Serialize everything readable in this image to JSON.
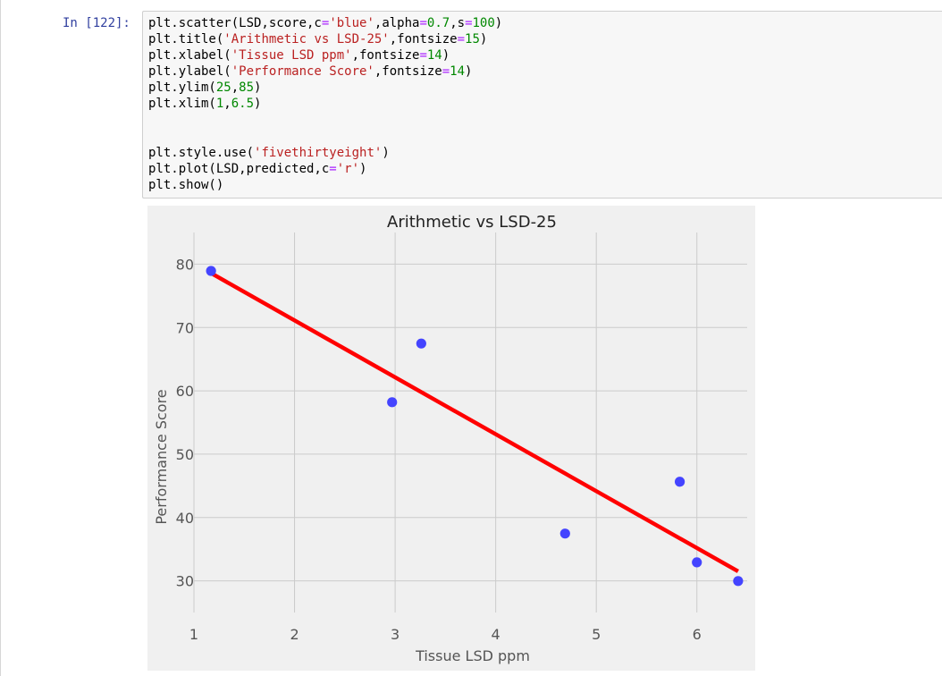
{
  "cell": {
    "prompt": "In [122]:",
    "code_lines": [
      [
        {
          "t": "plt.scatter(LSD,score,c"
        },
        {
          "t": "=",
          "k": "op"
        },
        {
          "t": "'blue'",
          "k": "str"
        },
        {
          "t": ",alpha"
        },
        {
          "t": "=",
          "k": "op"
        },
        {
          "t": "0.7",
          "k": "num"
        },
        {
          "t": ",s"
        },
        {
          "t": "=",
          "k": "op"
        },
        {
          "t": "100",
          "k": "num"
        },
        {
          "t": ")"
        }
      ],
      [
        {
          "t": "plt.title("
        },
        {
          "t": "'Arithmetic vs LSD-25'",
          "k": "str"
        },
        {
          "t": ",fontsize"
        },
        {
          "t": "=",
          "k": "op"
        },
        {
          "t": "15",
          "k": "num"
        },
        {
          "t": ")"
        }
      ],
      [
        {
          "t": "plt.xlabel("
        },
        {
          "t": "'Tissue LSD ppm'",
          "k": "str"
        },
        {
          "t": ",fontsize"
        },
        {
          "t": "=",
          "k": "op"
        },
        {
          "t": "14",
          "k": "num"
        },
        {
          "t": ")"
        }
      ],
      [
        {
          "t": "plt.ylabel("
        },
        {
          "t": "'Performance Score'",
          "k": "str"
        },
        {
          "t": ",fontsize"
        },
        {
          "t": "=",
          "k": "op"
        },
        {
          "t": "14",
          "k": "num"
        },
        {
          "t": ")"
        }
      ],
      [
        {
          "t": "plt.ylim("
        },
        {
          "t": "25",
          "k": "num"
        },
        {
          "t": ","
        },
        {
          "t": "85",
          "k": "num"
        },
        {
          "t": ")"
        }
      ],
      [
        {
          "t": "plt.xlim("
        },
        {
          "t": "1",
          "k": "num"
        },
        {
          "t": ","
        },
        {
          "t": "6.5",
          "k": "num"
        },
        {
          "t": ")"
        }
      ],
      [],
      [],
      [
        {
          "t": "plt.style.use("
        },
        {
          "t": "'fivethirtyeight'",
          "k": "str"
        },
        {
          "t": ")"
        }
      ],
      [
        {
          "t": "plt.plot(LSD,predicted,c"
        },
        {
          "t": "=",
          "k": "op"
        },
        {
          "t": "'r'",
          "k": "str"
        },
        {
          "t": ")"
        }
      ],
      [
        {
          "t": "plt.show()"
        }
      ]
    ]
  },
  "colors": {
    "plot_bg": "#f0f0f0",
    "grid": "#cbcbcb",
    "scatter": "#4444ff",
    "line": "#ff0000",
    "tick_text": "#555555",
    "label_text": "#555555",
    "title_text": "#222222"
  },
  "chart_data": {
    "type": "scatter",
    "title": "Arithmetic vs LSD-25",
    "xlabel": "Tissue LSD ppm",
    "ylabel": "Performance Score",
    "xlim": [
      1,
      6.5
    ],
    "ylim": [
      25,
      85
    ],
    "xticks": [
      1,
      2,
      3,
      4,
      5,
      6
    ],
    "yticks": [
      30,
      40,
      50,
      60,
      70,
      80
    ],
    "grid": true,
    "scatter_points": [
      {
        "x": 1.17,
        "y": 78.93
      },
      {
        "x": 2.97,
        "y": 58.2
      },
      {
        "x": 3.26,
        "y": 67.47
      },
      {
        "x": 4.69,
        "y": 37.47
      },
      {
        "x": 5.83,
        "y": 45.65
      },
      {
        "x": 6.0,
        "y": 32.92
      },
      {
        "x": 6.41,
        "y": 29.97
      }
    ],
    "fit_line": [
      {
        "x": 1.17,
        "y": 78.58
      },
      {
        "x": 6.41,
        "y": 31.5
      }
    ]
  }
}
